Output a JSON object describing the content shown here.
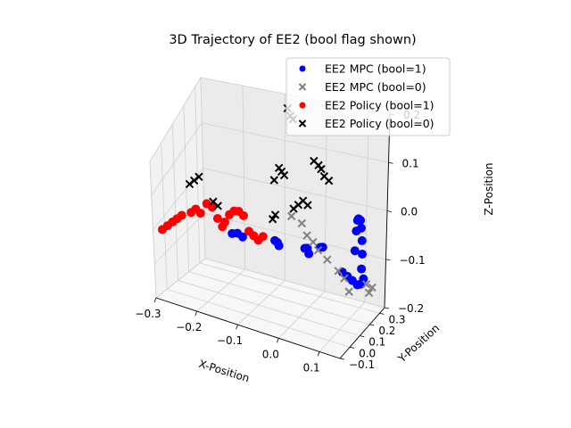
{
  "chart_data": {
    "type": "scatter",
    "title": "3D Trajectory of EE2 (bool flag shown)",
    "xlabel": "X-Position",
    "ylabel": "Y-Position",
    "zlabel": "Z-Position",
    "xlim": [
      -0.3,
      0.15
    ],
    "ylim": [
      -0.1,
      0.35
    ],
    "zlim": [
      -0.2,
      0.2
    ],
    "x_ticks": [
      "−0.3",
      "−0.2",
      "−0.1",
      "0.0",
      "0.1"
    ],
    "y_ticks": [
      "−0.1",
      "0.0",
      "0.1",
      "0.2",
      "0.3"
    ],
    "z_ticks": [
      "−0.2",
      "−0.1",
      "0.0",
      "0.1",
      "0.2"
    ],
    "grid": true,
    "legend_position": "top-right",
    "legend": [
      {
        "label": "EE2 MPC (bool=1)",
        "color": "#0000ff",
        "marker": "circle"
      },
      {
        "label": "EE2 MPC (bool=0)",
        "color": "#808080",
        "marker": "x"
      },
      {
        "label": "EE2 Policy (bool=1)",
        "color": "#ff0000",
        "marker": "circle"
      },
      {
        "label": "EE2 Policy (bool=0)",
        "color": "#000000",
        "marker": "x"
      }
    ],
    "series": [
      {
        "name": "EE2 MPC (bool=1)",
        "color": "#0000ff",
        "marker": "circle",
        "points": [
          [
            -0.15,
            0.05,
            -0.02
          ],
          [
            -0.14,
            0.06,
            -0.02
          ],
          [
            -0.13,
            0.07,
            -0.03
          ],
          [
            -0.06,
            0.1,
            -0.03
          ],
          [
            -0.055,
            0.105,
            -0.035
          ],
          [
            -0.05,
            0.1,
            -0.04
          ],
          [
            0.0,
            0.15,
            -0.05
          ],
          [
            0.005,
            0.155,
            -0.05
          ],
          [
            0.01,
            0.15,
            -0.06
          ],
          [
            0.03,
            0.18,
            -0.05
          ],
          [
            0.035,
            0.185,
            -0.05
          ],
          [
            0.08,
            0.2,
            -0.1
          ],
          [
            0.09,
            0.21,
            -0.11
          ],
          [
            0.1,
            0.22,
            -0.12
          ],
          [
            0.11,
            0.23,
            -0.13
          ],
          [
            0.12,
            0.25,
            -0.12
          ],
          [
            0.1,
            0.24,
            -0.06
          ],
          [
            0.1,
            0.25,
            -0.02
          ],
          [
            0.1,
            0.26,
            0.0
          ],
          [
            0.1,
            0.27,
            0.0
          ],
          [
            0.1,
            0.29,
            -0.01
          ],
          [
            0.1,
            0.3,
            -0.03
          ],
          [
            0.1,
            0.31,
            -0.06
          ],
          [
            0.1,
            0.315,
            -0.09
          ],
          [
            0.1,
            0.31,
            -0.12
          ],
          [
            0.1,
            0.3,
            -0.15
          ]
        ]
      },
      {
        "name": "EE2 MPC (bool=0)",
        "color": "#808080",
        "marker": "x",
        "points": [
          [
            -0.02,
            0.1,
            0.04
          ],
          [
            0.0,
            0.12,
            0.02
          ],
          [
            0.01,
            0.13,
            -0.01
          ],
          [
            0.02,
            0.15,
            -0.03
          ],
          [
            0.03,
            0.16,
            -0.05
          ],
          [
            0.05,
            0.17,
            -0.07
          ],
          [
            0.07,
            0.2,
            -0.1
          ],
          [
            0.08,
            0.22,
            -0.12
          ],
          [
            0.09,
            0.23,
            -0.15
          ],
          [
            0.12,
            0.28,
            -0.14
          ],
          [
            0.125,
            0.29,
            -0.16
          ],
          [
            0.13,
            0.3,
            -0.15
          ]
        ]
      },
      {
        "name": "EE2 Policy (bool=1)",
        "color": "#ff0000",
        "marker": "circle",
        "points": [
          [
            -0.3,
            -0.02,
            -0.03
          ],
          [
            -0.29,
            -0.01,
            -0.02
          ],
          [
            -0.28,
            0.0,
            -0.01
          ],
          [
            -0.27,
            0.005,
            0.0
          ],
          [
            -0.26,
            0.01,
            0.01
          ],
          [
            -0.24,
            0.02,
            0.02
          ],
          [
            -0.23,
            0.025,
            0.03
          ],
          [
            -0.22,
            0.03,
            0.02
          ],
          [
            -0.21,
            0.05,
            0.04
          ],
          [
            -0.2,
            0.06,
            0.03
          ],
          [
            -0.19,
            0.07,
            0.0
          ],
          [
            -0.18,
            0.075,
            -0.02
          ],
          [
            -0.17,
            0.06,
            0.0
          ],
          [
            -0.16,
            0.065,
            0.02
          ],
          [
            -0.15,
            0.07,
            0.03
          ],
          [
            -0.14,
            0.075,
            0.03
          ],
          [
            -0.13,
            0.08,
            0.02
          ],
          [
            -0.12,
            0.09,
            -0.02
          ],
          [
            -0.11,
            0.095,
            -0.03
          ],
          [
            -0.1,
            0.1,
            -0.04
          ],
          [
            -0.09,
            0.105,
            -0.03
          ]
        ]
      },
      {
        "name": "EE2 Policy (bool=0)",
        "color": "#000000",
        "marker": "x",
        "points": [
          [
            -0.25,
            0.05,
            0.08
          ],
          [
            -0.24,
            0.055,
            0.09
          ],
          [
            -0.23,
            0.06,
            0.1
          ],
          [
            -0.2,
            0.07,
            0.04
          ],
          [
            -0.19,
            0.075,
            0.03
          ],
          [
            -0.05,
            0.1,
            0.15
          ],
          [
            -0.045,
            0.105,
            0.14
          ],
          [
            -0.04,
            0.11,
            0.13
          ],
          [
            -0.06,
            0.095,
            0.12
          ],
          [
            -0.03,
            0.1,
            0.3
          ],
          [
            -0.025,
            0.105,
            0.28
          ],
          [
            -0.02,
            0.11,
            0.27
          ],
          [
            -0.06,
            0.08,
            0.03
          ],
          [
            -0.055,
            0.085,
            0.04
          ],
          [
            -0.02,
            0.12,
            0.05
          ],
          [
            -0.01,
            0.125,
            0.06
          ],
          [
            0.0,
            0.13,
            0.07
          ],
          [
            0.01,
            0.135,
            0.06
          ],
          [
            0.02,
            0.15,
            0.16
          ],
          [
            0.03,
            0.155,
            0.15
          ],
          [
            0.035,
            0.16,
            0.14
          ],
          [
            0.04,
            0.17,
            0.12
          ],
          [
            0.05,
            0.175,
            0.11
          ]
        ]
      }
    ]
  }
}
